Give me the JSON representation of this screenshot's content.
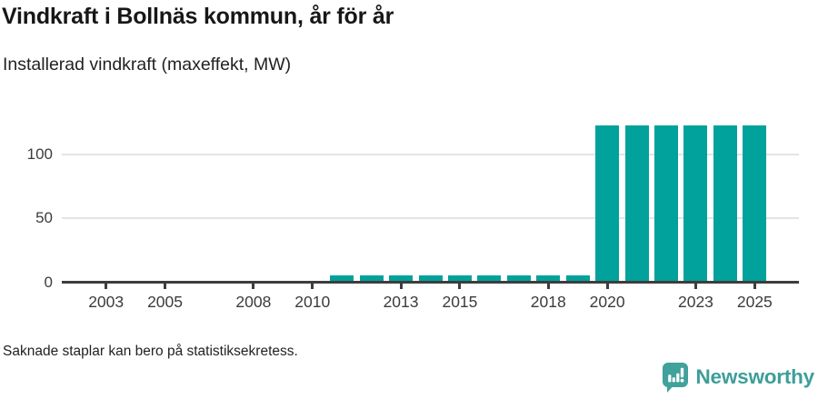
{
  "header": {
    "title": "Vindkraft i Bollnäs kommun, år för år",
    "subtitle": "Installerad vindkraft (maxeffekt, MW)"
  },
  "chart_data": {
    "type": "bar",
    "title": "Vindkraft i Bollnäs kommun, år för år",
    "ylabel": "Installerad vindkraft (maxeffekt, MW)",
    "xlabel": "",
    "x_domain": [
      2002,
      2026
    ],
    "x_tick_labels": [
      "2003",
      "2005",
      "2008",
      "2010",
      "2013",
      "2015",
      "2018",
      "2020",
      "2023",
      "2025"
    ],
    "y_ticks": [
      0,
      50,
      100
    ],
    "ylim": [
      0,
      128
    ],
    "grid": "horizontal-only",
    "legend": "none",
    "series": [
      {
        "name": "Installerad vindkraft (maxeffekt, MW)",
        "points": [
          {
            "x": 2011,
            "y": 6
          },
          {
            "x": 2012,
            "y": 6
          },
          {
            "x": 2013,
            "y": 6
          },
          {
            "x": 2014,
            "y": 6
          },
          {
            "x": 2015,
            "y": 6
          },
          {
            "x": 2016,
            "y": 6
          },
          {
            "x": 2017,
            "y": 6
          },
          {
            "x": 2018,
            "y": 6
          },
          {
            "x": 2019,
            "y": 6
          },
          {
            "x": 2020,
            "y": 122
          },
          {
            "x": 2021,
            "y": 122
          },
          {
            "x": 2022,
            "y": 122
          },
          {
            "x": 2023,
            "y": 122
          },
          {
            "x": 2024,
            "y": 122
          },
          {
            "x": 2025,
            "y": 122
          }
        ]
      }
    ]
  },
  "footer": {
    "note": "Saknade staplar kan bero på statistiksekretess.",
    "brand": "Newsworthy"
  },
  "colors": {
    "bar": "#00a29b",
    "axis_line": "#3d3d3d",
    "grid_line": "#e4e4e4",
    "tick_text": "#3c3c3c",
    "title_text": "#171717",
    "body_text": "#222222",
    "brand_teal": "#3d9e98",
    "icon_teal": "#3fa29b"
  }
}
